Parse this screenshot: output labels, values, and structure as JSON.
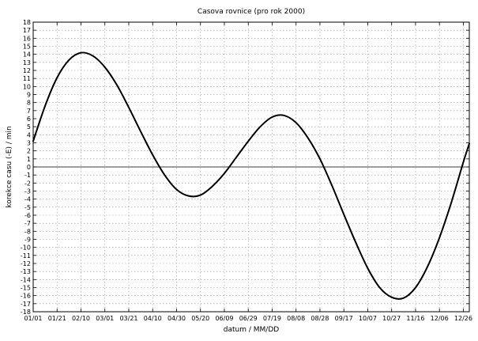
{
  "chart_data": {
    "type": "line",
    "title": "Casova rovnice (pro rok 2000)",
    "xlabel": "datum / MM/DD",
    "ylabel": "korekce casu (-E) / min",
    "x_tick_labels": [
      "01/01",
      "01/21",
      "02/10",
      "03/01",
      "03/21",
      "04/10",
      "04/30",
      "05/20",
      "06/09",
      "06/29",
      "07/19",
      "08/08",
      "08/28",
      "09/17",
      "10/07",
      "10/27",
      "11/16",
      "12/06",
      "12/26"
    ],
    "ylim": [
      -18,
      18
    ],
    "y_ticks": [
      -18,
      -17,
      -16,
      -15,
      -14,
      -13,
      -12,
      -11,
      -10,
      -9,
      -8,
      -7,
      -6,
      -5,
      -4,
      -3,
      -2,
      -1,
      0,
      1,
      2,
      3,
      4,
      5,
      6,
      7,
      8,
      9,
      10,
      11,
      12,
      13,
      14,
      15,
      16,
      17,
      18
    ],
    "grid": true,
    "series": [
      {
        "x": [
          "01/01",
          "01/11",
          "01/21",
          "01/31",
          "02/10",
          "02/20",
          "03/01",
          "03/11",
          "03/21",
          "03/31",
          "04/10",
          "04/20",
          "04/30",
          "05/10",
          "05/20",
          "05/30",
          "06/09",
          "06/19",
          "06/29",
          "07/09",
          "07/19",
          "07/29",
          "08/08",
          "08/18",
          "08/28",
          "09/07",
          "09/17",
          "09/27",
          "10/07",
          "10/17",
          "10/27",
          "11/06",
          "11/16",
          "11/26",
          "12/06",
          "12/16",
          "12/26",
          "12/31"
        ],
        "y": [
          3.2,
          7.6,
          11.1,
          13.3,
          14.2,
          13.8,
          12.4,
          10.2,
          7.4,
          4.4,
          1.5,
          -1.0,
          -2.8,
          -3.6,
          -3.5,
          -2.4,
          -0.8,
          1.2,
          3.2,
          5.0,
          6.2,
          6.4,
          5.5,
          3.6,
          1.0,
          -2.3,
          -5.9,
          -9.4,
          -12.6,
          -15.0,
          -16.2,
          -16.3,
          -15.0,
          -12.4,
          -8.8,
          -4.4,
          0.6,
          2.9
        ]
      }
    ]
  }
}
